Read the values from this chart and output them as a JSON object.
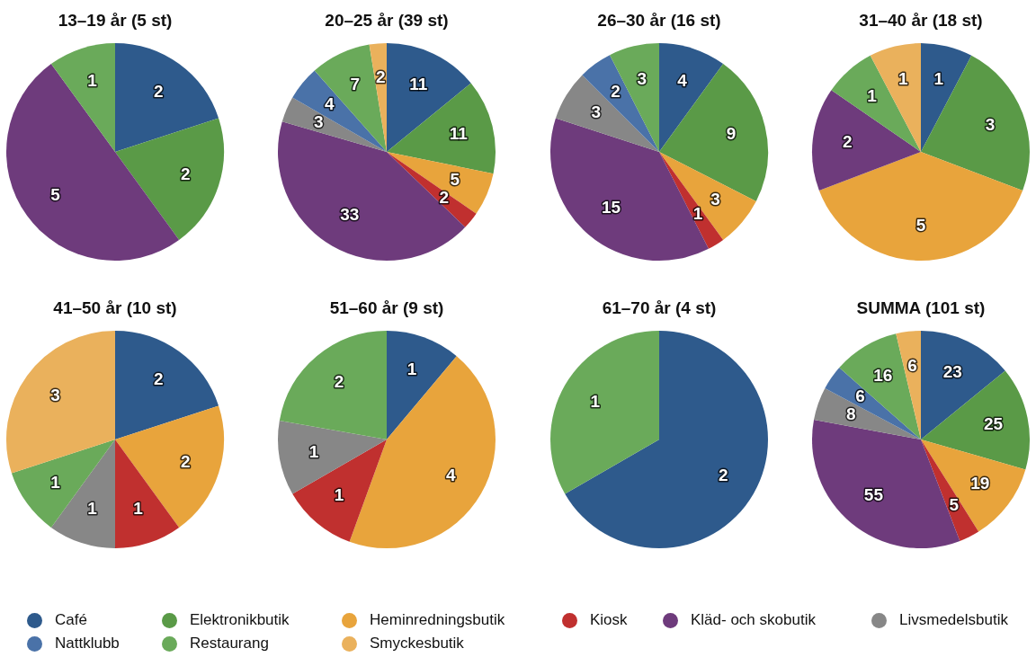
{
  "chart_data": [
    {
      "type": "pie",
      "title": "13–19 år (5 st)",
      "categories": [
        null,
        null,
        null,
        null
      ],
      "values": [
        2,
        2,
        5,
        1
      ],
      "colors": [
        "#2e5a8c",
        "#5a9a47",
        "#6e3b7c",
        "#6aaa5a"
      ],
      "data_labels": true
    },
    {
      "type": "pie",
      "title": "20–25 år (39 st)",
      "categories": [
        null,
        null,
        null,
        null,
        null,
        null,
        null,
        null,
        null
      ],
      "values": [
        11,
        11,
        5,
        2,
        33,
        3,
        4,
        7,
        2
      ],
      "colors": [
        "#2e5a8c",
        "#5a9a47",
        "#e8a43c",
        "#c0302f",
        "#6e3b7c",
        "#878787",
        "#4a72a8",
        "#6aaa5a",
        "#eab15c"
      ],
      "data_labels": true
    },
    {
      "type": "pie",
      "title": "26–30 år (16 st)",
      "categories": [
        null,
        null,
        null,
        null,
        null,
        null,
        null,
        null
      ],
      "values": [
        4,
        9,
        3,
        1,
        15,
        3,
        2,
        3
      ],
      "colors": [
        "#2e5a8c",
        "#5a9a47",
        "#e8a43c",
        "#c0302f",
        "#6e3b7c",
        "#878787",
        "#4a72a8",
        "#6aaa5a"
      ],
      "data_labels": true
    },
    {
      "type": "pie",
      "title": "31–40 år (18 st)",
      "categories": [
        null,
        null,
        null,
        null,
        null,
        null
      ],
      "values": [
        1,
        3,
        5,
        2,
        1,
        1
      ],
      "colors": [
        "#2e5a8c",
        "#5a9a47",
        "#e8a43c",
        "#6e3b7c",
        "#6aaa5a",
        "#eab15c"
      ],
      "data_labels": true
    },
    {
      "type": "pie",
      "title": "41–50 år (10 st)",
      "categories": [
        null,
        null,
        null,
        null,
        null,
        null
      ],
      "values": [
        2,
        2,
        1,
        1,
        1,
        3
      ],
      "colors": [
        "#2e5a8c",
        "#e8a43c",
        "#c0302f",
        "#878787",
        "#6aaa5a",
        "#eab15c"
      ],
      "data_labels": true
    },
    {
      "type": "pie",
      "title": "51–60 år (9 st)",
      "categories": [
        null,
        null,
        null,
        null,
        null
      ],
      "values": [
        1,
        4,
        1,
        1,
        2
      ],
      "colors": [
        "#2e5a8c",
        "#e8a43c",
        "#c0302f",
        "#878787",
        "#6aaa5a"
      ],
      "data_labels": true
    },
    {
      "type": "pie",
      "title": "61–70 år (4 st)",
      "categories": [
        null,
        null
      ],
      "values": [
        2,
        1
      ],
      "colors": [
        "#2e5a8c",
        "#6aaa5a"
      ],
      "data_labels": true
    },
    {
      "type": "pie",
      "title": "SUMMA (101 st)",
      "categories": [
        "Café",
        "Elektronikbutik",
        "Heminredningsbutik",
        "Kiosk",
        "Kläd- och skobutik",
        "Livsmedelsbutik",
        "Nattklubb",
        "Restaurang",
        "Smyckesbutik"
      ],
      "values": [
        23,
        25,
        19,
        5,
        55,
        8,
        6,
        16,
        6
      ],
      "colors": [
        "#2e5a8c",
        "#5a9a47",
        "#e8a43c",
        "#c0302f",
        "#6e3b7c",
        "#878787",
        "#4a72a8",
        "#6aaa5a",
        "#eab15c"
      ],
      "data_labels": true,
      "legend": "bottom"
    }
  ]
}
